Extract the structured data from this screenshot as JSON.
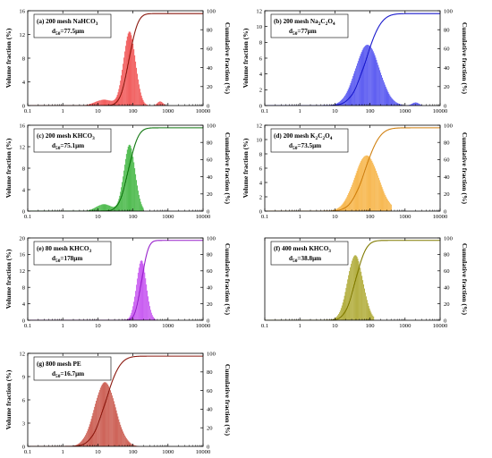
{
  "page": {
    "background": "#ffffff"
  },
  "chart_data": [
    {
      "id": "a",
      "type": "bar+line",
      "title_parts": [
        {
          "t": "(a) 200 mesh NaHCO"
        },
        {
          "t": "3",
          "sub": true
        }
      ],
      "d50_parts": [
        {
          "t": "d"
        },
        {
          "t": "50",
          "sub": true
        },
        {
          "t": "=77.5μm"
        }
      ],
      "xlabel": "",
      "ylabel": "Volume fraction (%)",
      "y2label": "Cumulative fraction (%)",
      "xscale": "log",
      "xlim": [
        0.1,
        10000
      ],
      "xticks": [
        "0.1",
        "1",
        "10",
        "100",
        "1000",
        "10000"
      ],
      "ylim": [
        0,
        16
      ],
      "yticks": [
        0,
        4,
        8,
        12,
        16
      ],
      "y2lim": [
        0,
        100
      ],
      "y2ticks": [
        0,
        20,
        40,
        60,
        80,
        100
      ],
      "bar_color": "#ee3333",
      "line_color": "#8b1a10",
      "components": [
        {
          "mu": 80,
          "sigma": 0.17,
          "peak": 12.5
        },
        {
          "mu": 15,
          "sigma": 0.25,
          "peak": 1.0
        },
        {
          "mu": 600,
          "sigma": 0.08,
          "peak": 0.7
        }
      ],
      "histogram": {
        "x_start": 2.5,
        "x_end": 1000,
        "bins_per_decade": 42
      },
      "cumulative": {
        "d50": 77.5,
        "sigma": 0.2,
        "max": 97
      }
    },
    {
      "id": "b",
      "type": "bar+line",
      "title_parts": [
        {
          "t": "(b) 200 mesh Na"
        },
        {
          "t": "2",
          "sub": true
        },
        {
          "t": "C"
        },
        {
          "t": "2",
          "sub": true
        },
        {
          "t": "O"
        },
        {
          "t": "4",
          "sub": true
        }
      ],
      "d50_parts": [
        {
          "t": "d"
        },
        {
          "t": "50",
          "sub": true
        },
        {
          "t": "=77μm"
        }
      ],
      "xlabel": "",
      "ylabel": "Volume fraction (%)",
      "y2label": "Cumulative fraction (%)",
      "xscale": "log",
      "xlim": [
        0.1,
        10000
      ],
      "xticks": [
        "0.1",
        "1",
        "10",
        "100",
        "1000",
        "10000"
      ],
      "ylim": [
        0,
        12
      ],
      "yticks": [
        0,
        2,
        4,
        6,
        8,
        10,
        12
      ],
      "y2lim": [
        0,
        100
      ],
      "y2ticks": [
        0,
        20,
        40,
        60,
        80,
        100
      ],
      "bar_color": "#3333ee",
      "line_color": "#1a1acc",
      "components": [
        {
          "mu": 85,
          "sigma": 0.34,
          "peak": 7.7
        },
        {
          "mu": 2000,
          "sigma": 0.1,
          "peak": 0.4
        }
      ],
      "histogram": {
        "x_start": 5,
        "x_end": 3000,
        "bins_per_decade": 42
      },
      "cumulative": {
        "d50": 77,
        "sigma": 0.34,
        "max": 97
      }
    },
    {
      "id": "c",
      "type": "bar+line",
      "title_parts": [
        {
          "t": "(c) 200 mesh KHCO"
        },
        {
          "t": "3",
          "sub": true
        }
      ],
      "d50_parts": [
        {
          "t": "d"
        },
        {
          "t": "50",
          "sub": true
        },
        {
          "t": "=75.1μm"
        }
      ],
      "xlabel": "",
      "ylabel": "Volume fraction (%)",
      "y2label": "Cumulative fraction (%)",
      "xscale": "log",
      "xlim": [
        0.1,
        10000
      ],
      "xticks": [
        "0.1",
        "1",
        "10",
        "100",
        "1000",
        "10000"
      ],
      "ylim": [
        0,
        16
      ],
      "yticks": [
        0,
        4,
        8,
        12,
        16
      ],
      "y2lim": [
        0,
        100
      ],
      "y2ticks": [
        0,
        20,
        40,
        60,
        80,
        100
      ],
      "bar_color": "#22aa22",
      "line_color": "#117711",
      "components": [
        {
          "mu": 80,
          "sigma": 0.16,
          "peak": 12.4
        },
        {
          "mu": 15,
          "sigma": 0.22,
          "peak": 1.3
        }
      ],
      "histogram": {
        "x_start": 2.5,
        "x_end": 200,
        "bins_per_decade": 42
      },
      "cumulative": {
        "d50": 75.1,
        "sigma": 0.22,
        "max": 97
      }
    },
    {
      "id": "d",
      "type": "bar+line",
      "title_parts": [
        {
          "t": "(d) 200 mesh K"
        },
        {
          "t": "2",
          "sub": true
        },
        {
          "t": "C"
        },
        {
          "t": "2",
          "sub": true
        },
        {
          "t": "O"
        },
        {
          "t": "4",
          "sub": true
        }
      ],
      "d50_parts": [
        {
          "t": "d"
        },
        {
          "t": "50",
          "sub": true
        },
        {
          "t": "=73.5μm"
        }
      ],
      "xlabel": "",
      "ylabel": "Volume fraction (%)",
      "y2label": "Cumulative fraction (%)",
      "xscale": "log",
      "xlim": [
        0.1,
        10000
      ],
      "xticks": [
        "0.1",
        "1",
        "10",
        "100",
        "1000",
        "10000"
      ],
      "ylim": [
        0,
        12
      ],
      "yticks": [
        0,
        2,
        4,
        6,
        8,
        10,
        12
      ],
      "y2lim": [
        0,
        100
      ],
      "y2ticks": [
        0,
        20,
        40,
        60,
        80,
        100
      ],
      "bar_color": "#f5a623",
      "line_color": "#d08010",
      "components": [
        {
          "mu": 80,
          "sigma": 0.34,
          "peak": 7.8
        }
      ],
      "histogram": {
        "x_start": 8,
        "x_end": 400,
        "bins_per_decade": 42
      },
      "cumulative": {
        "d50": 73.5,
        "sigma": 0.33,
        "max": 97
      }
    },
    {
      "id": "e",
      "type": "bar+line",
      "title_parts": [
        {
          "t": "(e) 80 mesh KHCO"
        },
        {
          "t": "3",
          "sub": true
        }
      ],
      "d50_parts": [
        {
          "t": "d"
        },
        {
          "t": "50",
          "sub": true
        },
        {
          "t": "=178μm"
        }
      ],
      "xlabel": "",
      "ylabel": "Volume fraction (%)",
      "y2label": "Cumulative fraction (%)",
      "xscale": "log",
      "xlim": [
        0.1,
        10000
      ],
      "xticks": [
        "0.1",
        "1",
        "10",
        "100",
        "1000",
        "10000"
      ],
      "ylim": [
        0,
        20
      ],
      "yticks": [
        0,
        4,
        8,
        12,
        16,
        20
      ],
      "y2lim": [
        0,
        100
      ],
      "y2ticks": [
        0,
        20,
        40,
        60,
        80,
        100
      ],
      "bar_color": "#bb33ee",
      "line_color": "#9922cc",
      "components": [
        {
          "mu": 175,
          "sigma": 0.14,
          "peak": 14.6
        }
      ],
      "histogram": {
        "x_start": 60,
        "x_end": 500,
        "bins_per_decade": 42
      },
      "cumulative": {
        "d50": 178,
        "sigma": 0.15,
        "max": 97
      }
    },
    {
      "id": "f",
      "type": "bar+line",
      "title_parts": [
        {
          "t": "(f) 400 mesh KHCO"
        },
        {
          "t": "3",
          "sub": true
        }
      ],
      "d50_parts": [
        {
          "t": "d"
        },
        {
          "t": "50",
          "sub": true
        },
        {
          "t": "=38.8μm"
        }
      ],
      "xlabel": "",
      "ylabel": "",
      "y2label": "Cumulative fraction (%)",
      "xscale": "log",
      "xlim": [
        0.1,
        10000
      ],
      "xticks": [
        "0.1",
        "1",
        "10",
        "100",
        "1000",
        "10000"
      ],
      "ylim": [
        0,
        12
      ],
      "yticks": [],
      "y2lim": [
        0,
        100
      ],
      "y2ticks": [
        0,
        20,
        40,
        60,
        80,
        100
      ],
      "bar_color": "#a09a10",
      "line_color": "#807a00",
      "components": [
        {
          "mu": 38,
          "sigma": 0.22,
          "peak": 9.5
        }
      ],
      "histogram": {
        "x_start": 8,
        "x_end": 130,
        "bins_per_decade": 42
      },
      "cumulative": {
        "d50": 38.8,
        "sigma": 0.24,
        "max": 97
      }
    },
    {
      "id": "g",
      "type": "bar+line",
      "title_parts": [
        {
          "t": "(g) 800 mesh PE"
        }
      ],
      "d50_parts": [
        {
          "t": "d"
        },
        {
          "t": "50",
          "sub": true
        },
        {
          "t": "=16.7μm"
        }
      ],
      "xlabel": "",
      "ylabel": "Volume fraction (%)",
      "y2label": "Cumulative fraction (%)",
      "xscale": "log",
      "xlim": [
        0.1,
        10000
      ],
      "xticks": [
        "0.1",
        "1",
        "10",
        "100",
        "1000",
        "10000"
      ],
      "ylim": [
        0,
        12
      ],
      "yticks": [
        0,
        3,
        6,
        9,
        12
      ],
      "y2lim": [
        0,
        100
      ],
      "y2ticks": [
        0,
        20,
        40,
        60,
        80,
        100
      ],
      "bar_color": "#c0392b",
      "line_color": "#8b1a10",
      "components": [
        {
          "mu": 16,
          "sigma": 0.3,
          "peak": 8.3
        }
      ],
      "histogram": {
        "x_start": 2,
        "x_end": 200,
        "bins_per_decade": 42
      },
      "cumulative": {
        "d50": 16.7,
        "sigma": 0.32,
        "max": 97
      }
    }
  ]
}
